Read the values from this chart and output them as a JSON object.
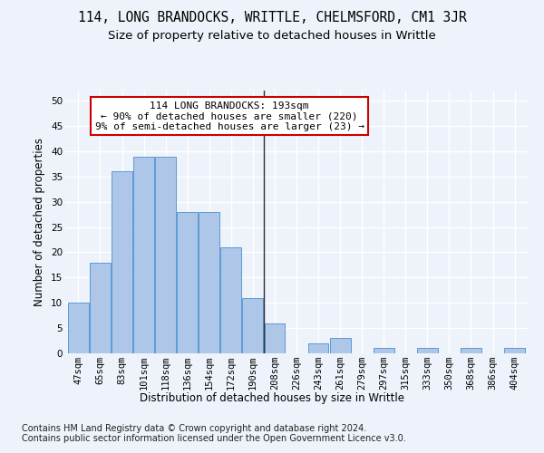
{
  "title": "114, LONG BRANDOCKS, WRITTLE, CHELMSFORD, CM1 3JR",
  "subtitle": "Size of property relative to detached houses in Writtle",
  "xlabel": "Distribution of detached houses by size in Writtle",
  "ylabel": "Number of detached properties",
  "bar_labels": [
    "47sqm",
    "65sqm",
    "83sqm",
    "101sqm",
    "118sqm",
    "136sqm",
    "154sqm",
    "172sqm",
    "190sqm",
    "208sqm",
    "226sqm",
    "243sqm",
    "261sqm",
    "279sqm",
    "297sqm",
    "315sqm",
    "333sqm",
    "350sqm",
    "368sqm",
    "386sqm",
    "404sqm"
  ],
  "bar_values": [
    10,
    18,
    36,
    39,
    39,
    28,
    28,
    21,
    11,
    6,
    0,
    2,
    3,
    0,
    1,
    0,
    1,
    0,
    1,
    0,
    1
  ],
  "bar_color": "#aec6e8",
  "bar_edge_color": "#5b9bd5",
  "vline_x": 8.5,
  "vline_color": "#303030",
  "annotation_text": "114 LONG BRANDOCKS: 193sqm\n← 90% of detached houses are smaller (220)\n9% of semi-detached houses are larger (23) →",
  "annotation_box_color": "#ffffff",
  "annotation_box_edge_color": "#cc0000",
  "ylim": [
    0,
    52
  ],
  "yticks": [
    0,
    5,
    10,
    15,
    20,
    25,
    30,
    35,
    40,
    45,
    50
  ],
  "footer_text": "Contains HM Land Registry data © Crown copyright and database right 2024.\nContains public sector information licensed under the Open Government Licence v3.0.",
  "bg_color": "#eef2fa",
  "plot_bg_color": "#eef2fa",
  "grid_color": "#ffffff",
  "title_fontsize": 10.5,
  "subtitle_fontsize": 9.5,
  "label_fontsize": 8.5,
  "tick_fontsize": 7.5,
  "annotation_fontsize": 8,
  "footer_fontsize": 7
}
